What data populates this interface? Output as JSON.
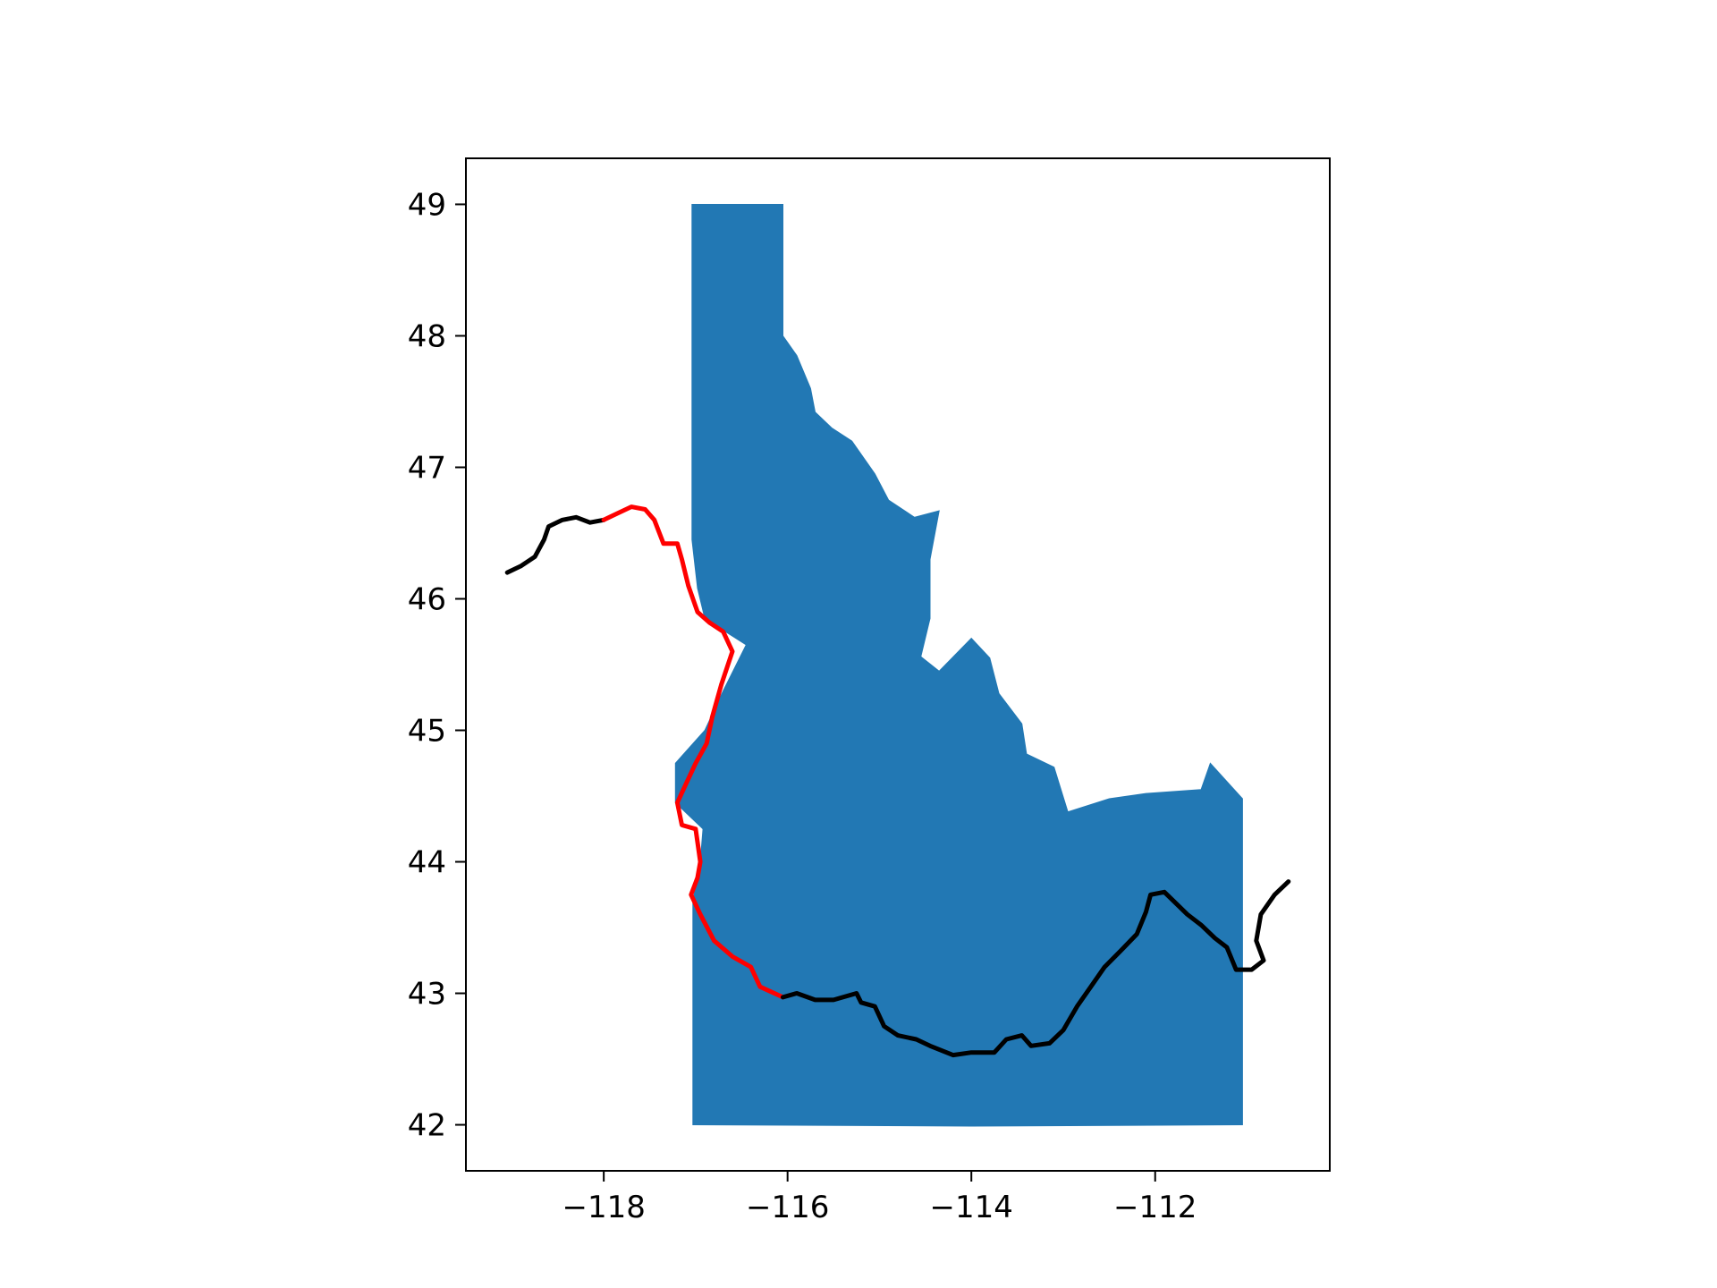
{
  "chart_data": {
    "type": "map",
    "title": "",
    "xlabel": "",
    "ylabel": "",
    "xlim": [
      -119.5,
      -110.1
    ],
    "ylim": [
      41.65,
      49.35
    ],
    "grid": false,
    "x_ticks": [
      {
        "value": -118,
        "label": "−118"
      },
      {
        "value": -116,
        "label": "−116"
      },
      {
        "value": -114,
        "label": "−114"
      },
      {
        "value": -112,
        "label": "−112"
      }
    ],
    "y_ticks": [
      {
        "value": 42,
        "label": "42"
      },
      {
        "value": 43,
        "label": "43"
      },
      {
        "value": 44,
        "label": "44"
      },
      {
        "value": 45,
        "label": "45"
      },
      {
        "value": 46,
        "label": "46"
      },
      {
        "value": 47,
        "label": "47"
      },
      {
        "value": 48,
        "label": "48"
      },
      {
        "value": 49,
        "label": "49"
      }
    ],
    "state_polygon": {
      "color": "#2278b4",
      "points": [
        [
          -117.04,
          49.0
        ],
        [
          -116.05,
          49.0
        ],
        [
          -116.05,
          48.0
        ],
        [
          -115.9,
          47.85
        ],
        [
          -115.75,
          47.6
        ],
        [
          -115.7,
          47.42
        ],
        [
          -115.52,
          47.3
        ],
        [
          -115.3,
          47.2
        ],
        [
          -115.05,
          46.95
        ],
        [
          -114.9,
          46.75
        ],
        [
          -114.62,
          46.62
        ],
        [
          -114.35,
          46.67
        ],
        [
          -114.45,
          46.3
        ],
        [
          -114.45,
          45.85
        ],
        [
          -114.55,
          45.56
        ],
        [
          -114.35,
          45.45
        ],
        [
          -114.0,
          45.7
        ],
        [
          -113.8,
          45.55
        ],
        [
          -113.7,
          45.28
        ],
        [
          -113.45,
          45.05
        ],
        [
          -113.4,
          44.82
        ],
        [
          -113.1,
          44.72
        ],
        [
          -112.95,
          44.38
        ],
        [
          -112.5,
          44.48
        ],
        [
          -112.1,
          44.52
        ],
        [
          -111.5,
          44.55
        ],
        [
          -111.4,
          44.75
        ],
        [
          -111.05,
          44.48
        ],
        [
          -111.05,
          42.0
        ],
        [
          -114.0,
          41.99
        ],
        [
          -117.03,
          42.0
        ],
        [
          -117.03,
          43.7
        ],
        [
          -116.95,
          44.0
        ],
        [
          -116.92,
          44.25
        ],
        [
          -117.22,
          44.45
        ],
        [
          -117.22,
          44.75
        ],
        [
          -116.9,
          45.0
        ],
        [
          -116.7,
          45.3
        ],
        [
          -116.45,
          45.65
        ],
        [
          -116.9,
          45.85
        ],
        [
          -116.98,
          46.08
        ],
        [
          -117.04,
          46.45
        ],
        [
          -117.04,
          49.0
        ]
      ]
    },
    "series": [
      {
        "color": "#000000",
        "points": [
          [
            -119.05,
            46.2
          ],
          [
            -118.9,
            46.25
          ],
          [
            -118.75,
            46.32
          ],
          [
            -118.65,
            46.45
          ],
          [
            -118.6,
            46.55
          ],
          [
            -118.45,
            46.6
          ],
          [
            -118.3,
            46.62
          ],
          [
            -118.15,
            46.58
          ],
          [
            -118.0,
            46.6
          ]
        ]
      },
      {
        "color": "#ff0000",
        "points": [
          [
            -118.0,
            46.6
          ],
          [
            -117.85,
            46.65
          ],
          [
            -117.7,
            46.7
          ],
          [
            -117.55,
            46.68
          ],
          [
            -117.45,
            46.6
          ],
          [
            -117.35,
            46.42
          ],
          [
            -117.2,
            46.42
          ],
          [
            -117.15,
            46.3
          ],
          [
            -117.08,
            46.1
          ],
          [
            -116.98,
            45.9
          ],
          [
            -116.85,
            45.82
          ],
          [
            -116.7,
            45.75
          ],
          [
            -116.6,
            45.6
          ],
          [
            -116.72,
            45.35
          ],
          [
            -116.82,
            45.1
          ],
          [
            -116.88,
            44.9
          ],
          [
            -117.0,
            44.75
          ],
          [
            -117.1,
            44.6
          ],
          [
            -117.2,
            44.45
          ],
          [
            -117.15,
            44.28
          ],
          [
            -117.0,
            44.25
          ],
          [
            -116.95,
            44.0
          ],
          [
            -116.98,
            43.88
          ],
          [
            -117.05,
            43.75
          ],
          [
            -116.95,
            43.6
          ],
          [
            -116.8,
            43.4
          ],
          [
            -116.6,
            43.28
          ],
          [
            -116.4,
            43.2
          ],
          [
            -116.3,
            43.05
          ],
          [
            -116.05,
            42.97
          ]
        ]
      },
      {
        "color": "#000000",
        "points": [
          [
            -116.05,
            42.97
          ],
          [
            -115.9,
            43.0
          ],
          [
            -115.7,
            42.95
          ],
          [
            -115.5,
            42.95
          ],
          [
            -115.25,
            43.0
          ],
          [
            -115.2,
            42.93
          ],
          [
            -115.05,
            42.9
          ],
          [
            -114.95,
            42.75
          ],
          [
            -114.8,
            42.68
          ],
          [
            -114.6,
            42.65
          ],
          [
            -114.45,
            42.6
          ],
          [
            -114.2,
            42.53
          ],
          [
            -114.0,
            42.55
          ],
          [
            -113.9,
            42.55
          ],
          [
            -113.75,
            42.55
          ],
          [
            -113.62,
            42.65
          ],
          [
            -113.45,
            42.68
          ],
          [
            -113.35,
            42.6
          ],
          [
            -113.15,
            42.62
          ],
          [
            -113.0,
            42.72
          ],
          [
            -112.85,
            42.9
          ],
          [
            -112.7,
            43.05
          ],
          [
            -112.55,
            43.2
          ],
          [
            -112.38,
            43.32
          ],
          [
            -112.2,
            43.45
          ],
          [
            -112.1,
            43.62
          ],
          [
            -112.05,
            43.75
          ],
          [
            -111.9,
            43.77
          ],
          [
            -111.65,
            43.6
          ],
          [
            -111.5,
            43.52
          ],
          [
            -111.35,
            43.42
          ],
          [
            -111.22,
            43.35
          ],
          [
            -111.12,
            43.18
          ],
          [
            -110.95,
            43.18
          ],
          [
            -110.82,
            43.25
          ],
          [
            -110.9,
            43.4
          ],
          [
            -110.85,
            43.6
          ],
          [
            -110.7,
            43.75
          ],
          [
            -110.55,
            43.85
          ]
        ]
      }
    ]
  }
}
